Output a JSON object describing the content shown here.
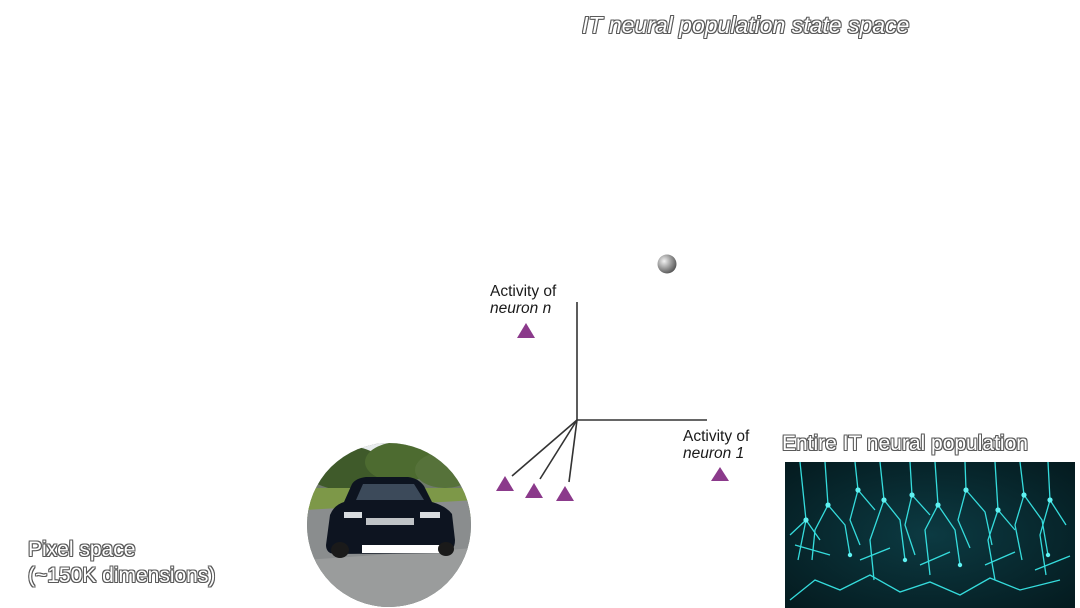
{
  "title": "IT neural population state space",
  "axes": {
    "vertical_label_line1": "Activity of",
    "vertical_label_line2": "neuron n",
    "horizontal_label_line1": "Activity of",
    "horizontal_label_line2": "neuron 1"
  },
  "pixel_space": {
    "line1": "Pixel space",
    "line2": "(~150K dimensions)"
  },
  "population": {
    "label": "Entire IT neural population"
  },
  "colors": {
    "marker": "#8b3a8b",
    "axis": "#333333",
    "neural": "#38e6e6"
  },
  "icons": {
    "car_photo": "car-photo",
    "neuron_image": "neural-population-image"
  }
}
